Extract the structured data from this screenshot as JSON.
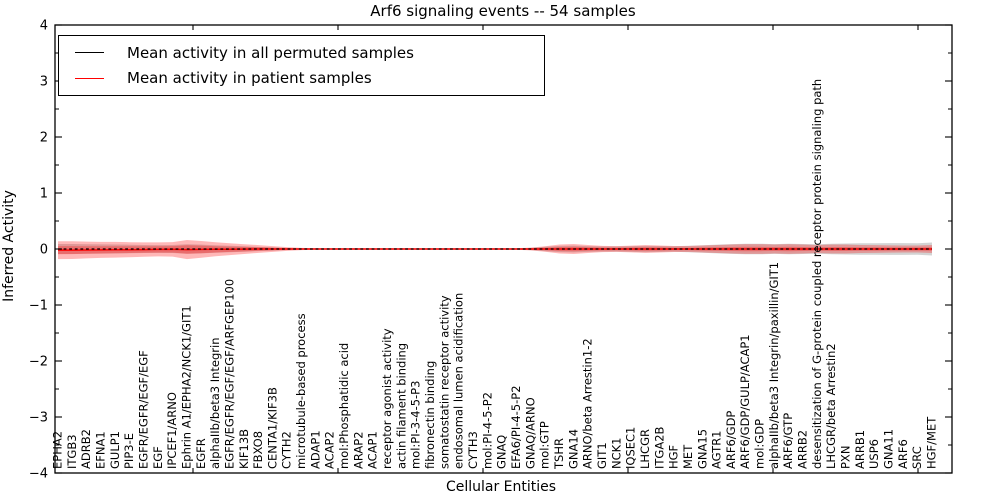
{
  "title": "Arf6 signaling events -- 54 samples",
  "legend": {
    "items": [
      {
        "label": "Mean activity in all permuted samples",
        "color": "#000000"
      },
      {
        "label": "Mean activity in patient samples",
        "color": "#ff0000"
      }
    ]
  },
  "axes": {
    "xlabel": "Cellular Entities",
    "ylabel": "Inferred Activity",
    "y_tick_labels": [
      "4",
      "3",
      "2",
      "1",
      "0",
      "−1",
      "−2",
      "−3",
      "−4"
    ],
    "y_tick_values": [
      4,
      3,
      2,
      1,
      0,
      -1,
      -2,
      -3,
      -4
    ]
  },
  "colors": {
    "permuted_line": "#000000",
    "patient_line": "#ff0000",
    "patient_band": "rgba(255,0,0,0.28)",
    "permuted_band": "rgba(110,110,110,0.30)",
    "frame": "#000000"
  },
  "chart_data": {
    "type": "area",
    "title": "Arf6 signaling events -- 54 samples",
    "xlabel": "Cellular Entities",
    "ylabel": "Inferred Activity",
    "ylim": [
      -4,
      4
    ],
    "grid": false,
    "legend_position": "upper left",
    "categories": [
      "EPHA2",
      "ITGB3",
      "ADRB2",
      "EFNA1",
      "GULP1",
      "PIP3-E",
      "EGFR/EGFR/EGF/EGF",
      "EGF",
      "IPCEF1/ARNO",
      "Ephrin A1/EPHA2/NCK1/GIT1",
      "EGFR",
      "alphaIIb/beta3 Integrin",
      "EGFR/EGFR/EGF/EGF/ARFGEP100",
      "KIF13B",
      "FBXO8",
      "CENTA1/KIF3B",
      "CYTH2",
      "microtubule-based process",
      "ADAP1",
      "ACAP2",
      "mol:Phosphatidic acid",
      "ARAP2",
      "ACAP1",
      "receptor agonist activity",
      "actin filament binding",
      "mol:PI-3-4-5-P3",
      "fibronectin binding",
      "somatostatin receptor activity",
      "endosomal lumen acidification",
      "CYTH3",
      "mol:PI-4-5-P2",
      "GNAQ",
      "EFA6/PI-4-5-P2",
      "GNAQ/ARNO",
      "mol:GTP",
      "TSHR",
      "GNA14",
      "ARNO/beta Arrestin1-2",
      "GIT1",
      "NCK1",
      "IQSEC1",
      "LHCGR",
      "ITGA2B",
      "HGF",
      "MET",
      "GNA15",
      "AGTR1",
      "ARF6/GDP",
      "ARF6/GDP/GULP/ACAP1",
      "mol:GDP",
      "alphaIIb/beta3 Integrin/paxillin/GIT1",
      "ARF6/GTP",
      "ARRB2",
      "desensitization of G-protein coupled receptor protein signaling path",
      "LHCGR/beta Arrestin2",
      "PXN",
      "ARRB1",
      "USP6",
      "GNA11",
      "ARF6",
      "SRC",
      "HGF/MET"
    ],
    "series": [
      {
        "name": "Mean activity in all permuted samples",
        "style": "dashed",
        "color": "#000000",
        "values": [
          0,
          0,
          0,
          0,
          0,
          0,
          0,
          0,
          0,
          0,
          0,
          0,
          0,
          0,
          0,
          0,
          0,
          0,
          0,
          0,
          0,
          0,
          0,
          0,
          0,
          0,
          0,
          0,
          0,
          0,
          0,
          0,
          0,
          0,
          0,
          0,
          0,
          0,
          0,
          0,
          0,
          0,
          0,
          0,
          0,
          0,
          0,
          0,
          0,
          0,
          0,
          0,
          0,
          0,
          0,
          0,
          0,
          0,
          0,
          0,
          0,
          0
        ]
      },
      {
        "name": "Mean activity in patient samples",
        "style": "solid",
        "color": "#ff0000",
        "values": [
          -0.02,
          -0.02,
          -0.018,
          -0.016,
          -0.014,
          -0.012,
          -0.01,
          -0.008,
          -0.006,
          -0.01,
          -0.008,
          -0.006,
          -0.004,
          -0.002,
          0,
          0,
          0,
          0,
          0,
          0,
          0,
          0,
          0,
          0,
          0,
          0,
          0,
          0,
          0,
          0,
          0,
          0,
          0,
          0,
          0,
          0,
          0,
          0,
          0,
          0,
          0,
          0,
          0,
          0,
          0,
          0,
          0,
          0,
          0,
          0,
          0,
          0,
          0,
          0,
          0,
          0,
          0,
          0,
          0,
          0,
          0,
          0
        ]
      },
      {
        "name": "patient band halfwidth outer",
        "style": "band",
        "color": "rgba(255,0,0,0.28)",
        "values": [
          0.16,
          0.158,
          0.15,
          0.143,
          0.14,
          0.134,
          0.127,
          0.125,
          0.13,
          0.17,
          0.15,
          0.125,
          0.105,
          0.088,
          0.07,
          0.052,
          0.034,
          0.02,
          0.015,
          0.014,
          0.014,
          0.014,
          0.014,
          0.014,
          0.014,
          0.014,
          0.014,
          0.014,
          0.014,
          0.014,
          0.014,
          0.014,
          0.015,
          0.025,
          0.05,
          0.08,
          0.09,
          0.072,
          0.056,
          0.052,
          0.06,
          0.07,
          0.062,
          0.054,
          0.054,
          0.062,
          0.072,
          0.08,
          0.088,
          0.088,
          0.08,
          0.088,
          0.08,
          0.072,
          0.08,
          0.08,
          0.072,
          0.07,
          0.064,
          0.062,
          0.062,
          0.072
        ]
      },
      {
        "name": "patient band halfwidth inner",
        "style": "band",
        "color": "rgba(255,0,0,0.28)",
        "values": [
          0.072,
          0.071,
          0.068,
          0.064,
          0.063,
          0.06,
          0.057,
          0.056,
          0.058,
          0.076,
          0.068,
          0.056,
          0.047,
          0.04,
          0.032,
          0.023,
          0.015,
          0.009,
          0.007,
          0.006,
          0.006,
          0.006,
          0.006,
          0.006,
          0.006,
          0.006,
          0.006,
          0.006,
          0.006,
          0.006,
          0.006,
          0.006,
          0.007,
          0.011,
          0.022,
          0.036,
          0.04,
          0.032,
          0.025,
          0.023,
          0.027,
          0.032,
          0.028,
          0.024,
          0.024,
          0.028,
          0.032,
          0.036,
          0.04,
          0.04,
          0.036,
          0.04,
          0.036,
          0.032,
          0.036,
          0.036,
          0.032,
          0.032,
          0.029,
          0.028,
          0.028,
          0.032
        ]
      },
      {
        "name": "permuted band halfwidth",
        "style": "band",
        "color": "rgba(110,110,110,0.30)",
        "values": [
          0.09,
          0.09,
          0.085,
          0.082,
          0.08,
          0.076,
          0.072,
          0.07,
          0.072,
          0.085,
          0.078,
          0.068,
          0.058,
          0.048,
          0.038,
          0.028,
          0.018,
          0.012,
          0.01,
          0.01,
          0.01,
          0.01,
          0.01,
          0.01,
          0.01,
          0.01,
          0.01,
          0.01,
          0.01,
          0.01,
          0.01,
          0.01,
          0.012,
          0.02,
          0.04,
          0.055,
          0.06,
          0.052,
          0.046,
          0.046,
          0.052,
          0.058,
          0.054,
          0.05,
          0.058,
          0.066,
          0.078,
          0.088,
          0.094,
          0.094,
          0.088,
          0.094,
          0.09,
          0.086,
          0.092,
          0.098,
          0.102,
          0.102,
          0.106,
          0.106,
          0.102,
          0.116
        ]
      }
    ]
  }
}
